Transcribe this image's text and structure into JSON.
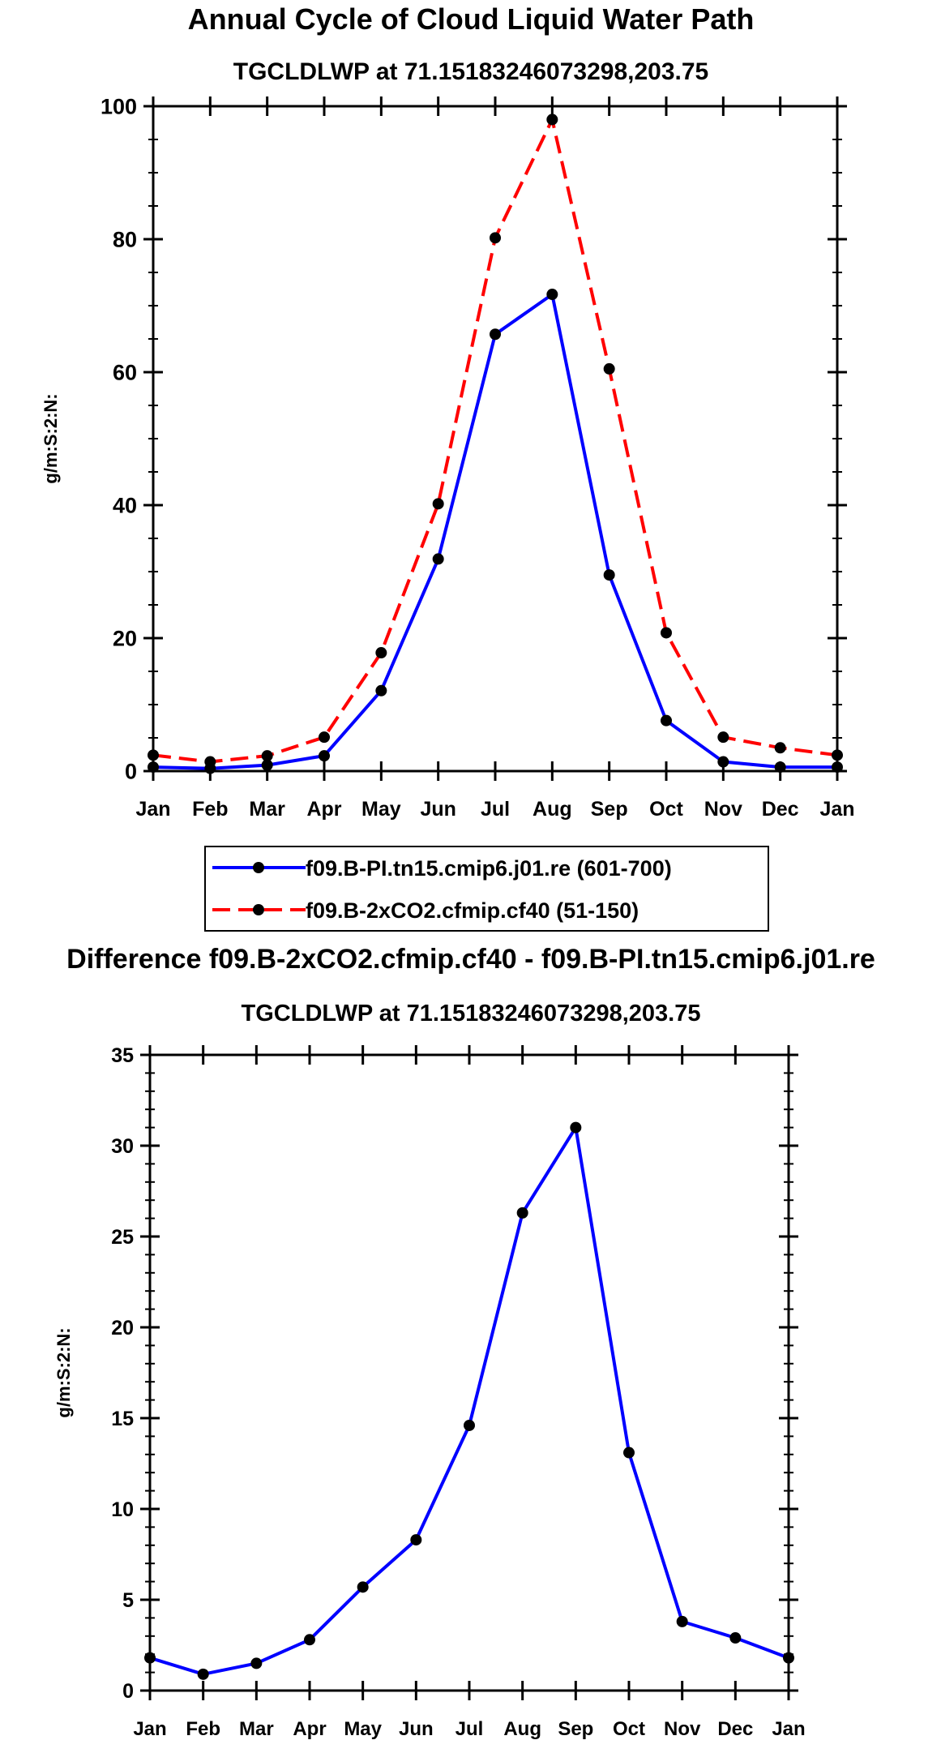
{
  "chart_data": [
    {
      "type": "line",
      "title": "Annual Cycle of Cloud Liquid Water Path",
      "subtitle": "TGCLDLWP at 71.15183246073298,203.75",
      "xlabel": "",
      "ylabel": "g/m:S:2:N:",
      "categories": [
        "Jan",
        "Feb",
        "Mar",
        "Apr",
        "May",
        "Jun",
        "Jul",
        "Aug",
        "Sep",
        "Oct",
        "Nov",
        "Dec",
        "Jan"
      ],
      "ylim": [
        0,
        100
      ],
      "yticks": [
        0,
        20,
        40,
        60,
        80,
        100
      ],
      "series": [
        {
          "name": "f09.B-PI.tn15.cmip6.j01.re (601-700)",
          "color": "#0000ff",
          "dash": "solid",
          "values": [
            0.6,
            0.4,
            0.9,
            2.3,
            12.1,
            31.9,
            65.7,
            71.7,
            29.5,
            7.6,
            1.4,
            0.6,
            0.6
          ]
        },
        {
          "name": "f09.B-2xCO2.cfmip.cf40 (51-150)",
          "color": "#ff0000",
          "dash": "dashed",
          "values": [
            2.4,
            1.4,
            2.3,
            5.1,
            17.8,
            40.2,
            80.2,
            98.0,
            60.5,
            20.8,
            5.1,
            3.5,
            2.4
          ]
        }
      ]
    },
    {
      "type": "line",
      "title": "Difference f09.B-2xCO2.cfmip.cf40 - f09.B-PI.tn15.cmip6.j01.re",
      "subtitle": "TGCLDLWP at 71.15183246073298,203.75",
      "xlabel": "",
      "ylabel": "g/m:S:2:N:",
      "categories": [
        "Jan",
        "Feb",
        "Mar",
        "Apr",
        "May",
        "Jun",
        "Jul",
        "Aug",
        "Sep",
        "Oct",
        "Nov",
        "Dec",
        "Jan"
      ],
      "ylim": [
        0,
        35
      ],
      "yticks": [
        0,
        5,
        10,
        15,
        20,
        25,
        30,
        35
      ],
      "series": [
        {
          "name": "Difference",
          "color": "#0000ff",
          "dash": "solid",
          "values": [
            1.8,
            0.9,
            1.5,
            2.8,
            5.7,
            8.3,
            14.6,
            26.3,
            31.0,
            13.1,
            3.8,
            2.9,
            1.8
          ]
        }
      ]
    }
  ]
}
